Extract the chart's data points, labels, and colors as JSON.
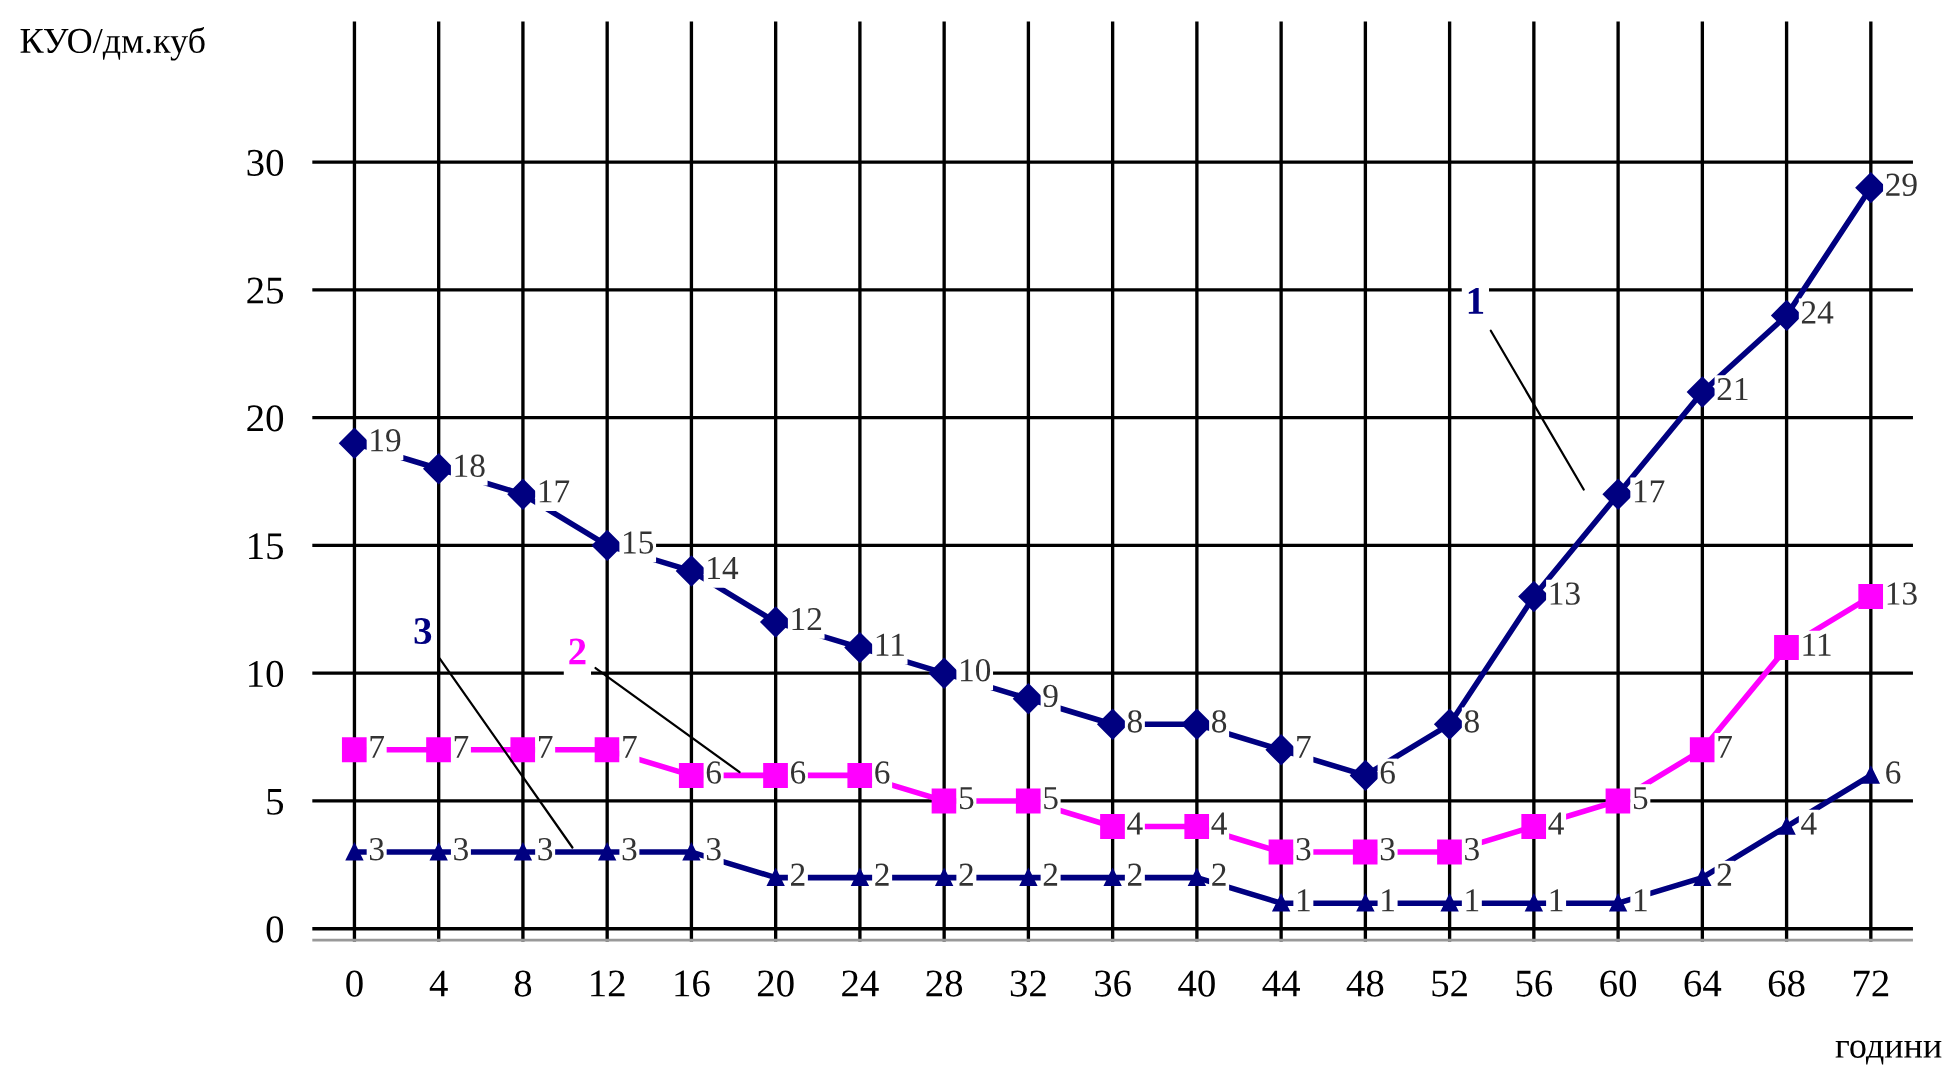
{
  "chart_data": {
    "type": "line",
    "ylabel": "КУО/дм.куб",
    "xlabel": "години",
    "x": [
      0,
      4,
      8,
      12,
      16,
      20,
      24,
      28,
      32,
      36,
      40,
      44,
      48,
      52,
      56,
      60,
      64,
      68,
      72
    ],
    "series": [
      {
        "name": "1",
        "color": "#000080",
        "marker": "diamond",
        "values": [
          19,
          18,
          17,
          15,
          14,
          12,
          11,
          10,
          9,
          8,
          8,
          7,
          6,
          8,
          13,
          17,
          21,
          24,
          29
        ]
      },
      {
        "name": "2",
        "color": "#ff00ff",
        "marker": "square",
        "values": [
          7,
          7,
          7,
          7,
          6,
          6,
          6,
          5,
          5,
          4,
          4,
          3,
          3,
          3,
          4,
          5,
          7,
          11,
          13
        ]
      },
      {
        "name": "3",
        "color": "#000080",
        "marker": "triangle",
        "values": [
          3,
          3,
          3,
          3,
          3,
          2,
          2,
          2,
          2,
          2,
          2,
          1,
          1,
          1,
          1,
          1,
          2,
          4,
          6
        ]
      }
    ],
    "xlim": [
      -2,
      74
    ],
    "xticks": [
      0,
      4,
      8,
      12,
      16,
      20,
      24,
      28,
      32,
      36,
      40,
      44,
      48,
      52,
      56,
      60,
      64,
      68,
      72
    ],
    "ylim": [
      -0.5,
      35.5
    ],
    "yticks": [
      0,
      5,
      10,
      15,
      20,
      25,
      30
    ],
    "grid": true,
    "legend": false,
    "data_labels": true,
    "line_style": "solid"
  }
}
